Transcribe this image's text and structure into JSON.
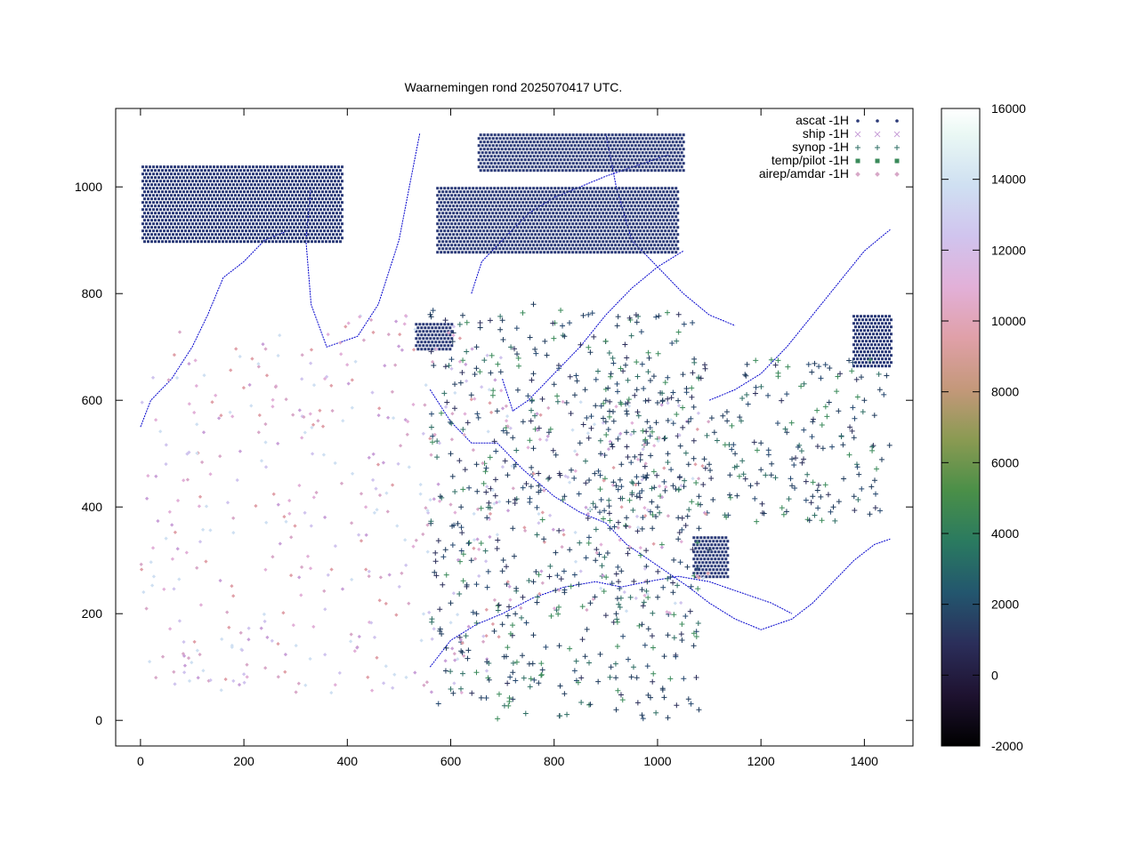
{
  "chart_data": {
    "type": "scatter",
    "title": "Waarnemingen rond 2025070417 UTC.",
    "xlabel": "",
    "ylabel": "",
    "xlim": [
      -48,
      1494
    ],
    "ylim": [
      -48,
      1147
    ],
    "xticks": [
      "0",
      "200",
      "400",
      "600",
      "800",
      "1000",
      "1200",
      "1400"
    ],
    "xtick_values": [
      0,
      200,
      400,
      600,
      800,
      1000,
      1200,
      1400
    ],
    "yticks": [
      "0",
      "200",
      "400",
      "600",
      "800",
      "1000"
    ],
    "ytick_values": [
      0,
      200,
      400,
      600,
      800,
      1000
    ],
    "grid": false,
    "legend_position": "top-right",
    "colorbar": {
      "min": -2000,
      "max": 16000,
      "ticks": [
        "16000",
        "14000",
        "12000",
        "10000",
        "8000",
        "6000",
        "4000",
        "2000",
        "0",
        "-2000"
      ],
      "tick_values": [
        16000,
        14000,
        12000,
        10000,
        8000,
        6000,
        4000,
        2000,
        0,
        -2000
      ]
    },
    "series": [
      {
        "name": "ascat -1H",
        "marker": "dot",
        "color": "#2b3a78"
      },
      {
        "name": "ship -1H",
        "marker": "cross",
        "color": "#c9a0d8"
      },
      {
        "name": "synop -1H",
        "marker": "plus",
        "color": "#2e6e64"
      },
      {
        "name": "temp/pilot -1H",
        "marker": "square",
        "color": "#3a8a5a"
      },
      {
        "name": "airep/amdar -1H",
        "marker": "diamond",
        "color": "#d8a8c8"
      }
    ],
    "regions": [
      {
        "kind": "ascat",
        "x": [
          0,
          390
        ],
        "y": [
          895,
          1040
        ]
      },
      {
        "kind": "ascat",
        "x": [
          570,
          1040
        ],
        "y": [
          880,
          1000
        ]
      },
      {
        "kind": "ascat",
        "x": [
          650,
          1050
        ],
        "y": [
          1030,
          1100
        ]
      },
      {
        "kind": "ascat",
        "x": [
          1375,
          1450
        ],
        "y": [
          665,
          760
        ]
      },
      {
        "kind": "ascat",
        "x": [
          1065,
          1135
        ],
        "y": [
          265,
          345
        ]
      },
      {
        "kind": "ascat",
        "x": [
          528,
          600
        ],
        "y": [
          698,
          745
        ]
      },
      {
        "kind": "synop",
        "x": [
          560,
          1080
        ],
        "y": [
          0,
          770
        ]
      },
      {
        "kind": "synop",
        "x": [
          880,
          1450
        ],
        "y": [
          370,
          680
        ]
      },
      {
        "kind": "airep",
        "x": [
          0,
          700
        ],
        "y": [
          50,
          760
        ]
      },
      {
        "kind": "airep",
        "x": [
          690,
          1100
        ],
        "y": [
          200,
          600
        ]
      }
    ],
    "coastlines": [
      [
        [
          0,
          550
        ],
        [
          20,
          600
        ],
        [
          60,
          640
        ],
        [
          100,
          700
        ],
        [
          130,
          760
        ],
        [
          160,
          830
        ],
        [
          200,
          860
        ],
        [
          240,
          900
        ],
        [
          290,
          920
        ]
      ],
      [
        [
          330,
          1000
        ],
        [
          320,
          900
        ],
        [
          330,
          780
        ],
        [
          360,
          700
        ],
        [
          420,
          720
        ],
        [
          460,
          780
        ],
        [
          500,
          900
        ],
        [
          520,
          1000
        ],
        [
          540,
          1100
        ]
      ],
      [
        [
          560,
          620
        ],
        [
          600,
          560
        ],
        [
          640,
          520
        ],
        [
          690,
          520
        ],
        [
          740,
          470
        ],
        [
          800,
          420
        ],
        [
          850,
          390
        ],
        [
          900,
          370
        ],
        [
          940,
          330
        ],
        [
          1000,
          290
        ],
        [
          1060,
          250
        ],
        [
          1100,
          220
        ],
        [
          1150,
          190
        ],
        [
          1200,
          170
        ],
        [
          1260,
          190
        ],
        [
          1300,
          220
        ],
        [
          1340,
          260
        ],
        [
          1380,
          300
        ],
        [
          1420,
          330
        ],
        [
          1450,
          340
        ]
      ],
      [
        [
          700,
          640
        ],
        [
          720,
          580
        ],
        [
          750,
          600
        ],
        [
          800,
          650
        ],
        [
          850,
          700
        ],
        [
          900,
          760
        ],
        [
          950,
          810
        ],
        [
          1000,
          850
        ],
        [
          1050,
          880
        ]
      ],
      [
        [
          640,
          800
        ],
        [
          660,
          860
        ],
        [
          700,
          900
        ],
        [
          750,
          950
        ],
        [
          800,
          980
        ],
        [
          850,
          1000
        ],
        [
          900,
          1020
        ],
        [
          960,
          1040
        ],
        [
          1020,
          1060
        ]
      ],
      [
        [
          560,
          100
        ],
        [
          600,
          150
        ],
        [
          650,
          180
        ],
        [
          700,
          200
        ],
        [
          760,
          230
        ],
        [
          820,
          250
        ],
        [
          880,
          260
        ],
        [
          930,
          250
        ],
        [
          980,
          260
        ],
        [
          1040,
          270
        ],
        [
          1100,
          260
        ],
        [
          1160,
          240
        ],
        [
          1220,
          220
        ],
        [
          1260,
          200
        ]
      ],
      [
        [
          1100,
          600
        ],
        [
          1150,
          620
        ],
        [
          1200,
          650
        ],
        [
          1250,
          700
        ],
        [
          1300,
          760
        ],
        [
          1350,
          820
        ],
        [
          1400,
          880
        ],
        [
          1450,
          920
        ]
      ],
      [
        [
          900,
          1100
        ],
        [
          920,
          1000
        ],
        [
          950,
          900
        ],
        [
          1000,
          850
        ],
        [
          1050,
          800
        ],
        [
          1100,
          760
        ],
        [
          1150,
          740
        ]
      ]
    ],
    "synop_sites": [
      [
        650,
        700
      ],
      [
        700,
        750
      ],
      [
        760,
        780
      ],
      [
        820,
        720
      ],
      [
        870,
        690
      ],
      [
        910,
        650
      ],
      [
        960,
        620
      ],
      [
        1010,
        600
      ],
      [
        1060,
        560
      ],
      [
        1110,
        540
      ],
      [
        640,
        610
      ],
      [
        690,
        580
      ],
      [
        740,
        560
      ],
      [
        790,
        540
      ],
      [
        850,
        520
      ],
      [
        890,
        500
      ],
      [
        930,
        480
      ],
      [
        980,
        460
      ],
      [
        1030,
        440
      ],
      [
        1080,
        420
      ],
      [
        600,
        500
      ],
      [
        650,
        480
      ],
      [
        710,
        460
      ],
      [
        770,
        440
      ],
      [
        820,
        420
      ],
      [
        880,
        400
      ],
      [
        940,
        380
      ],
      [
        990,
        360
      ],
      [
        1040,
        340
      ],
      [
        1100,
        320
      ],
      [
        580,
        420
      ],
      [
        620,
        400
      ],
      [
        670,
        380
      ],
      [
        720,
        360
      ],
      [
        780,
        340
      ],
      [
        830,
        320
      ],
      [
        880,
        300
      ],
      [
        930,
        280
      ],
      [
        980,
        260
      ],
      [
        1030,
        240
      ],
      [
        590,
        320
      ],
      [
        640,
        300
      ],
      [
        700,
        280
      ],
      [
        760,
        260
      ],
      [
        820,
        240
      ],
      [
        870,
        220
      ],
      [
        920,
        200
      ],
      [
        970,
        180
      ],
      [
        1020,
        160
      ],
      [
        1070,
        140
      ],
      [
        600,
        220
      ],
      [
        650,
        200
      ],
      [
        700,
        180
      ],
      [
        760,
        160
      ],
      [
        810,
        140
      ],
      [
        860,
        120
      ],
      [
        910,
        100
      ],
      [
        960,
        80
      ],
      [
        1010,
        60
      ],
      [
        1060,
        40
      ],
      [
        620,
        130
      ],
      [
        670,
        110
      ],
      [
        720,
        90
      ],
      [
        770,
        70
      ],
      [
        820,
        50
      ],
      [
        870,
        30
      ],
      [
        920,
        20
      ],
      [
        970,
        10
      ],
      [
        1020,
        5
      ],
      [
        1080,
        20
      ],
      [
        1150,
        500
      ],
      [
        1200,
        520
      ],
      [
        1250,
        540
      ],
      [
        1300,
        560
      ],
      [
        1350,
        580
      ],
      [
        1400,
        600
      ],
      [
        1430,
        620
      ],
      [
        1200,
        470
      ],
      [
        1260,
        490
      ],
      [
        1320,
        510
      ],
      [
        1380,
        530
      ],
      [
        1420,
        450
      ],
      [
        1380,
        420
      ],
      [
        1340,
        400
      ],
      [
        1300,
        420
      ],
      [
        1260,
        440
      ],
      [
        1220,
        460
      ],
      [
        1180,
        440
      ],
      [
        1140,
        460
      ],
      [
        1100,
        480
      ],
      [
        900,
        560
      ],
      [
        940,
        540
      ],
      [
        980,
        520
      ],
      [
        1020,
        500
      ],
      [
        1060,
        480
      ],
      [
        920,
        440
      ],
      [
        960,
        420
      ],
      [
        1000,
        400
      ],
      [
        1040,
        380
      ],
      [
        1080,
        360
      ],
      [
        860,
        620
      ],
      [
        900,
        600
      ],
      [
        940,
        580
      ],
      [
        980,
        560
      ],
      [
        760,
        650
      ],
      [
        800,
        630
      ],
      [
        840,
        610
      ],
      [
        880,
        590
      ],
      [
        720,
        530
      ],
      [
        760,
        510
      ]
    ]
  }
}
